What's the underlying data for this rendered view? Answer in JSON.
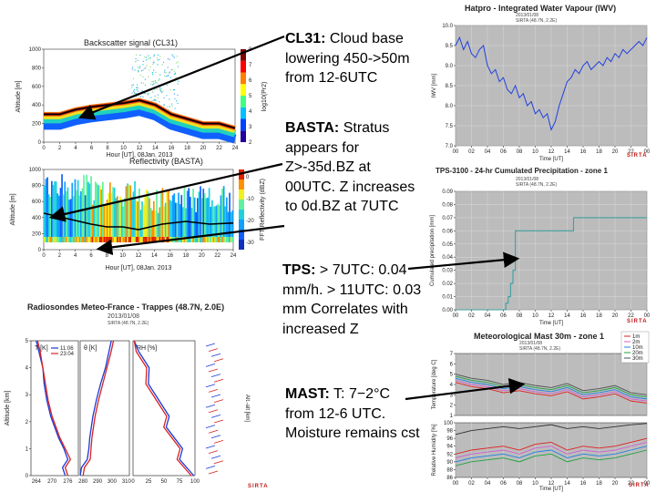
{
  "notes": {
    "cl31_head": "CL31:",
    "cl31_text": "Cloud base lowering 450->50m from 12-6UTC",
    "basta_head": "BASTA:",
    "basta_text": "Stratus appears for Z>-35d.BZ at 00UTC. Z increases to 0d.BZ at 7UTC",
    "tps_head": "TPS:",
    "tps_text": "> 7UTC: 0.04 mm/h. > 11UTC: 0.03 mm Correlates with increased Z",
    "mast_head": "MAST:",
    "mast_text": "T: 7−2°C from 12-6 UTC. Moisture remains cst"
  },
  "colors": {
    "accent": "#000000",
    "logo": "#c01818",
    "grid": "#c8c8c8",
    "plotbg": "#bcbcbc"
  },
  "chart_data": [
    {
      "type": "heatmap",
      "title": "Backscatter signal (CL31)",
      "xlabel": "Hour [UT], 08Jan. 2013",
      "ylabel": "Altitude [m]",
      "colorbar_label": "log10(Pr2)",
      "x_ticks": [
        "0",
        "2",
        "4",
        "6",
        "8",
        "10",
        "12",
        "14",
        "16",
        "18",
        "20",
        "22",
        "24"
      ],
      "y_ticks": [
        "0",
        "200",
        "400",
        "600",
        "800",
        "1000"
      ],
      "colorbar_ticks": [
        "2",
        "3",
        "4",
        "5",
        "6",
        "7",
        "8"
      ],
      "xlim": [
        0,
        24
      ],
      "ylim": [
        0,
        1000
      ],
      "cloud_base_hours": [
        0,
        2,
        4,
        6,
        8,
        10,
        12,
        14,
        16,
        18,
        20,
        22,
        24
      ],
      "cloud_base_m": [
        300,
        300,
        350,
        380,
        400,
        420,
        450,
        400,
        300,
        250,
        200,
        200,
        150
      ]
    },
    {
      "type": "heatmap",
      "title": "Reflectivity (BASTA)",
      "xlabel": "Hour [UT], 08Jan. 2013",
      "ylabel": "Altitude [m]",
      "colorbar_label": "FFT Reflectivity (dBZ)",
      "x_ticks": [
        "0",
        "2",
        "4",
        "6",
        "8",
        "10",
        "12",
        "14",
        "16",
        "18",
        "20",
        "22",
        "24"
      ],
      "y_ticks": [
        "0",
        "200",
        "400",
        "600",
        "800",
        "1000"
      ],
      "colorbar_ticks": [
        "0",
        "-10",
        "-20",
        "-30"
      ],
      "xlim": [
        0,
        24
      ],
      "ylim": [
        0,
        1000
      ]
    },
    {
      "type": "line",
      "title": "Radiosondes Meteo-France - Trappes (48.7N, 2.0E)",
      "subtitle": "2013/01/08",
      "site": "SIRTA (48.7N, 2.2E)",
      "ylabel": "Altitude [km]",
      "y_ticks": [
        "0",
        "1",
        "2",
        "3",
        "4",
        "5"
      ],
      "ylim": [
        0,
        5
      ],
      "panels": [
        {
          "label": "T [K]",
          "x_ticks": [
            "264",
            "270",
            "276"
          ],
          "xlim": [
            262,
            280
          ]
        },
        {
          "label": "θ [K]",
          "x_ticks": [
            "280",
            "290",
            "300",
            "310"
          ],
          "xlim": [
            278,
            312
          ]
        },
        {
          "label": "RH [%]",
          "x_ticks": [
            "0",
            "25",
            "50",
            "75",
            "100"
          ],
          "xlim": [
            0,
            100
          ]
        }
      ],
      "legend": [
        "11:06",
        "23:04"
      ],
      "wind_label": "Alt.-alt [km]",
      "series": [
        {
          "name": "11:06",
          "color": "#1838d8",
          "T_alt": [
            0,
            0.3,
            0.6,
            1,
            1.4,
            1.8,
            2.2,
            2.8,
            3.4,
            4,
            4.6,
            5
          ],
          "T": [
            275,
            274,
            276,
            274.5,
            272.5,
            271,
            269.5,
            268,
            267,
            266.5,
            265,
            264
          ]
        },
        {
          "name": "23:04",
          "color": "#d82020",
          "T_alt": [
            0,
            0.3,
            0.6,
            1,
            1.4,
            1.8,
            2.2,
            2.8,
            3.4,
            4,
            4.6,
            5
          ],
          "T": [
            276,
            275,
            277,
            275,
            273,
            271.5,
            270,
            268.5,
            267.5,
            266.5,
            265.5,
            264.5
          ]
        }
      ]
    },
    {
      "type": "line",
      "title": "Hatpro - Integrated Water Vapour (IWV)",
      "subtitle": "2013/01/08",
      "site": "SIRTA (48.7N, 2.2E)",
      "xlabel": "Time [UT]",
      "ylabel": "IWV [mm]",
      "x_ticks": [
        "00",
        "02",
        "04",
        "06",
        "08",
        "10",
        "12",
        "14",
        "16",
        "18",
        "20",
        "22",
        "00"
      ],
      "y_ticks": [
        "7.0",
        "7.5",
        "8.0",
        "8.5",
        "9.0",
        "9.5",
        "10.0"
      ],
      "xlim": [
        0,
        24
      ],
      "ylim": [
        7,
        10
      ],
      "series": [
        {
          "name": "IWV",
          "color": "#2040e0",
          "x": [
            0,
            0.5,
            1,
            1.5,
            2,
            2.5,
            3,
            3.5,
            4,
            4.5,
            5,
            5.5,
            6,
            6.5,
            7,
            7.5,
            8,
            8.5,
            9,
            9.5,
            10,
            10.5,
            11,
            11.5,
            12,
            12.5,
            13,
            13.5,
            14,
            14.5,
            15,
            15.5,
            16,
            16.5,
            17,
            17.5,
            18,
            18.5,
            19,
            19.5,
            20,
            20.5,
            21,
            21.5,
            22,
            22.5,
            23,
            23.5,
            24
          ],
          "y": [
            9.5,
            9.7,
            9.4,
            9.6,
            9.3,
            9.2,
            9.4,
            9.5,
            9.0,
            8.8,
            8.9,
            8.6,
            8.7,
            8.4,
            8.3,
            8.5,
            8.2,
            8.3,
            8.0,
            8.1,
            7.8,
            7.9,
            7.7,
            7.8,
            7.4,
            7.6,
            8.0,
            8.3,
            8.6,
            8.7,
            8.9,
            8.8,
            9.0,
            9.1,
            8.9,
            9.0,
            9.1,
            9.0,
            9.2,
            9.1,
            9.3,
            9.2,
            9.4,
            9.3,
            9.4,
            9.5,
            9.6,
            9.5,
            9.7
          ]
        }
      ]
    },
    {
      "type": "line",
      "title": "TPS-3100 - 24-hr Cumulated Precipitation - zone 1",
      "subtitle": "2013/01/08",
      "site": "SIRTA (48.7N, 2.2E)",
      "xlabel": "Time [UT]",
      "ylabel": "Cumulated precipitation [mm]",
      "x_ticks": [
        "00",
        "02",
        "04",
        "06",
        "08",
        "10",
        "12",
        "14",
        "16",
        "18",
        "20",
        "22",
        "00"
      ],
      "y_ticks": [
        "0.00",
        "0.01",
        "0.02",
        "0.03",
        "0.04",
        "0.05",
        "0.06",
        "0.07",
        "0.08",
        "0.09"
      ],
      "xlim": [
        0,
        24
      ],
      "ylim": [
        0,
        0.09
      ],
      "series": [
        {
          "name": "precip",
          "color": "#40a0a0",
          "x": [
            0,
            6.3,
            6.3,
            6.6,
            6.6,
            6.9,
            6.9,
            7.2,
            7.2,
            7.5,
            7.5,
            14.8,
            14.8,
            24
          ],
          "y": [
            0,
            0,
            0.005,
            0.005,
            0.01,
            0.01,
            0.02,
            0.02,
            0.03,
            0.03,
            0.06,
            0.06,
            0.07,
            0.07
          ]
        }
      ]
    },
    {
      "type": "line",
      "title": "Meteorological Mast 30m - zone 1",
      "subtitle": "2013/01/08",
      "site": "SIRTA (48.7N, 2.2E)",
      "xlabel": "Time [UT]",
      "ylabel_top": "Temperature [deg C]",
      "ylabel_bottom": "Relative Humidity [%]",
      "x_ticks": [
        "00",
        "02",
        "04",
        "06",
        "08",
        "10",
        "12",
        "14",
        "16",
        "18",
        "20",
        "22",
        "00"
      ],
      "top_y_ticks": [
        "1",
        "2",
        "3",
        "4",
        "5",
        "6",
        "7"
      ],
      "bottom_y_ticks": [
        "86",
        "88",
        "90",
        "92",
        "94",
        "96",
        "98",
        "100"
      ],
      "xlim": [
        0,
        24
      ],
      "top_ylim": [
        1,
        7
      ],
      "bottom_ylim": [
        86,
        100
      ],
      "legend": [
        "1m",
        "2m",
        "10m",
        "20m",
        "30m"
      ],
      "temp_series": [
        {
          "name": "1m",
          "color": "#e02020",
          "x": [
            0,
            2,
            4,
            6,
            8,
            10,
            12,
            14,
            16,
            18,
            20,
            22,
            24
          ],
          "y": [
            4.2,
            3.8,
            3.6,
            3.2,
            3.4,
            3.1,
            2.9,
            3.3,
            2.6,
            2.8,
            3.1,
            2.4,
            2.2
          ]
        },
        {
          "name": "2m",
          "color": "#d060d0",
          "x": [
            0,
            2,
            4,
            6,
            8,
            10,
            12,
            14,
            16,
            18,
            20,
            22,
            24
          ],
          "y": [
            4.4,
            4.0,
            3.8,
            3.4,
            3.6,
            3.3,
            3.1,
            3.5,
            2.8,
            3.0,
            3.3,
            2.6,
            2.4
          ]
        },
        {
          "name": "10m",
          "color": "#2080e0",
          "x": [
            0,
            2,
            4,
            6,
            8,
            10,
            12,
            14,
            16,
            18,
            20,
            22,
            24
          ],
          "y": [
            4.6,
            4.2,
            4.0,
            3.6,
            3.8,
            3.5,
            3.3,
            3.7,
            3.0,
            3.2,
            3.5,
            2.8,
            2.6
          ]
        },
        {
          "name": "20m",
          "color": "#20a040",
          "x": [
            0,
            2,
            4,
            6,
            8,
            10,
            12,
            14,
            16,
            18,
            20,
            22,
            24
          ],
          "y": [
            4.8,
            4.4,
            4.2,
            3.8,
            4.0,
            3.7,
            3.5,
            3.9,
            3.2,
            3.4,
            3.7,
            3.0,
            2.8
          ]
        },
        {
          "name": "30m",
          "color": "#505050",
          "x": [
            0,
            2,
            4,
            6,
            8,
            10,
            12,
            14,
            16,
            18,
            20,
            22,
            24
          ],
          "y": [
            5.0,
            4.6,
            4.4,
            4.0,
            4.2,
            3.9,
            3.7,
            4.1,
            3.4,
            3.6,
            3.9,
            3.2,
            3.0
          ]
        }
      ],
      "rh_series": [
        {
          "name": "1m",
          "color": "#e02020",
          "x": [
            0,
            2,
            4,
            6,
            8,
            10,
            12,
            14,
            16,
            18,
            20,
            22,
            24
          ],
          "y": [
            92,
            93,
            93.5,
            94,
            93,
            94.5,
            95,
            93,
            94,
            93.5,
            94,
            95,
            96
          ]
        },
        {
          "name": "2m",
          "color": "#d060d0",
          "x": [
            0,
            2,
            4,
            6,
            8,
            10,
            12,
            14,
            16,
            18,
            20,
            22,
            24
          ],
          "y": [
            91,
            92,
            92.5,
            93,
            92,
            93.5,
            94,
            92,
            93,
            92.5,
            93,
            94,
            95
          ]
        },
        {
          "name": "10m",
          "color": "#2080e0",
          "x": [
            0,
            2,
            4,
            6,
            8,
            10,
            12,
            14,
            16,
            18,
            20,
            22,
            24
          ],
          "y": [
            90,
            91,
            91.5,
            92,
            91,
            92.5,
            93,
            91,
            92,
            91.5,
            92,
            93,
            94
          ]
        },
        {
          "name": "20m",
          "color": "#20a040",
          "x": [
            0,
            2,
            4,
            6,
            8,
            10,
            12,
            14,
            16,
            18,
            20,
            22,
            24
          ],
          "y": [
            89,
            90,
            90.5,
            91,
            90,
            91.5,
            92,
            90,
            91,
            90.5,
            91,
            92,
            93
          ]
        },
        {
          "name": "30m",
          "color": "#303030",
          "x": [
            0,
            2,
            4,
            6,
            8,
            10,
            12,
            14,
            16,
            18,
            20,
            22,
            24
          ],
          "y": [
            97,
            98,
            98.5,
            99,
            98.5,
            99,
            99.5,
            98.5,
            99,
            98.5,
            99,
            99.5,
            99.8
          ]
        }
      ]
    }
  ],
  "logo": "SIRTA"
}
